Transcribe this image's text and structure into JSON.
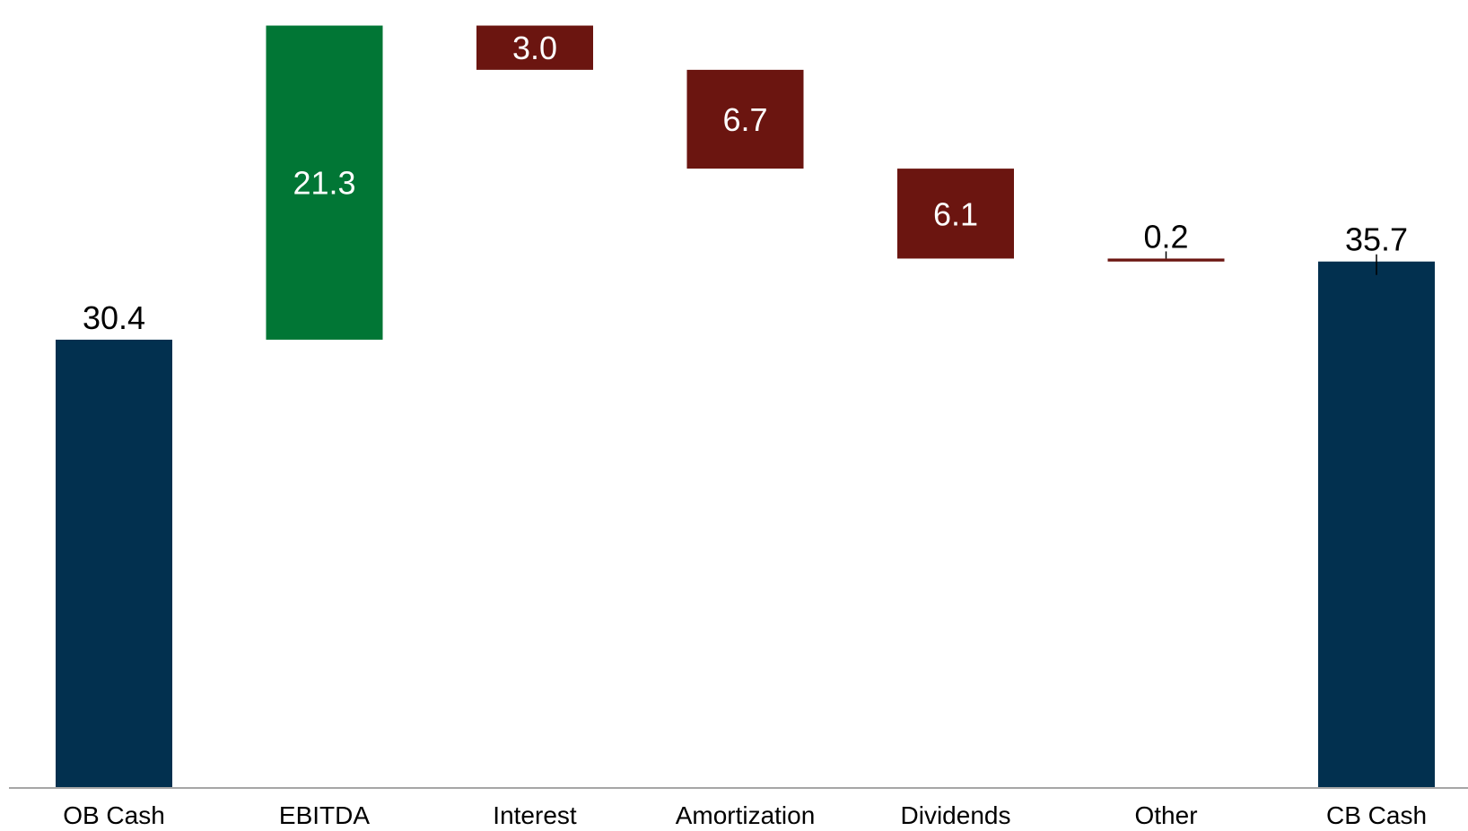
{
  "chart_data": {
    "type": "bar",
    "subtype": "waterfall",
    "title": "",
    "xlabel": "",
    "ylabel": "",
    "ylim": [
      0,
      52
    ],
    "grid": false,
    "legend": "none",
    "categories": [
      "OB Cash",
      "EBITDA",
      "Interest",
      "Amortization",
      "Dividends",
      "Other",
      "CB Cash"
    ],
    "steps": [
      {
        "category": "OB Cash",
        "kind": "total",
        "value": 30.4,
        "label": "30.4"
      },
      {
        "category": "EBITDA",
        "kind": "increase",
        "value": 21.3,
        "label": "21.3"
      },
      {
        "category": "Interest",
        "kind": "decrease",
        "value": -3.0,
        "label": "3.0"
      },
      {
        "category": "Amortization",
        "kind": "decrease",
        "value": -6.7,
        "label": "6.7"
      },
      {
        "category": "Dividends",
        "kind": "decrease",
        "value": -6.1,
        "label": "6.1"
      },
      {
        "category": "Other",
        "kind": "decrease",
        "value": -0.2,
        "label": "0.2"
      },
      {
        "category": "CB Cash",
        "kind": "total",
        "value": 35.7,
        "label": "35.7"
      }
    ],
    "colors": {
      "total": "#02304f",
      "increase": "#017635",
      "decrease": "#6b1510",
      "axis": "#a6a6a6",
      "label_dark": "#000000",
      "label_light": "#ffffff"
    }
  }
}
